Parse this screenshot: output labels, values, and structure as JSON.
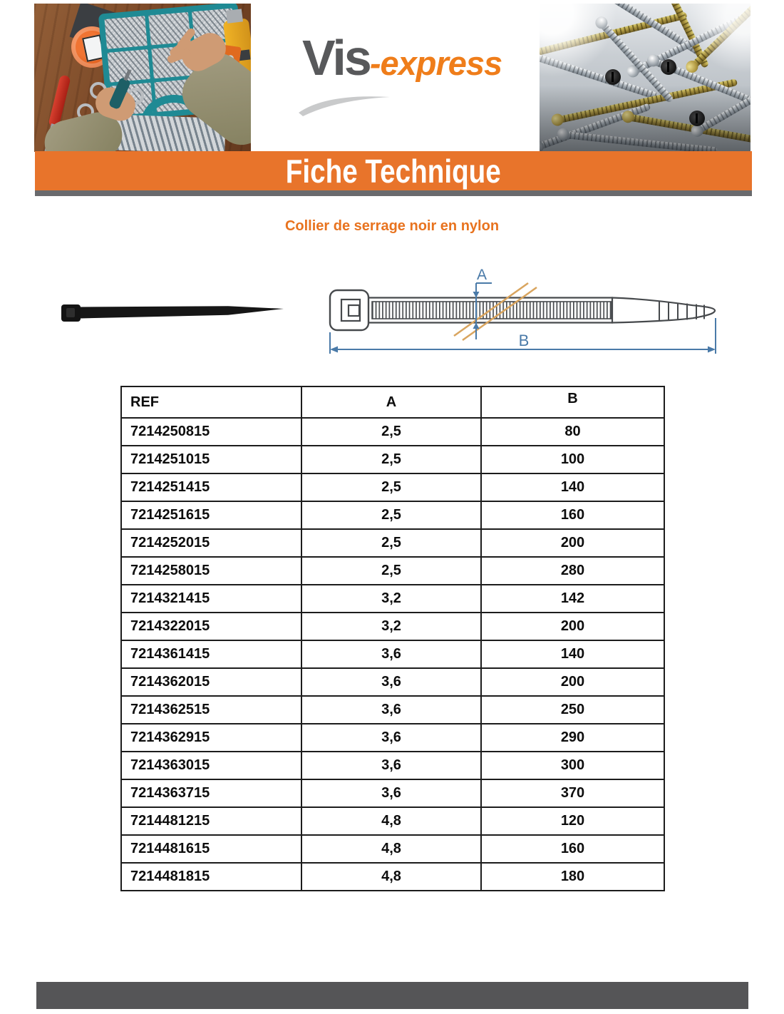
{
  "header": {
    "logo_primary": "Vis",
    "logo_secondary": "-express",
    "banner_title": "Fiche Technique"
  },
  "product": {
    "title": "Collier de serrage noir en nylon"
  },
  "diagram": {
    "dim_a_label": "A",
    "dim_b_label": "B"
  },
  "table": {
    "columns": [
      "REF",
      "A",
      "B"
    ],
    "rows": [
      [
        "7214250815",
        "2,5",
        "80"
      ],
      [
        "7214251015",
        "2,5",
        "100"
      ],
      [
        "7214251415",
        "2,5",
        "140"
      ],
      [
        "7214251615",
        "2,5",
        "160"
      ],
      [
        "7214252015",
        "2,5",
        "200"
      ],
      [
        "7214258015",
        "2,5",
        "280"
      ],
      [
        "7214321415",
        "3,2",
        "142"
      ],
      [
        "7214322015",
        "3,2",
        "200"
      ],
      [
        "7214361415",
        "3,6",
        "140"
      ],
      [
        "7214362015",
        "3,6",
        "200"
      ],
      [
        "7214362515",
        "3,6",
        "250"
      ],
      [
        "7214362915",
        "3,6",
        "290"
      ],
      [
        "7214363015",
        "3,6",
        "300"
      ],
      [
        "7214363715",
        "3,6",
        "370"
      ],
      [
        "7214481215",
        "4,8",
        "120"
      ],
      [
        "7214481615",
        "4,8",
        "160"
      ],
      [
        "7214481815",
        "4,8",
        "180"
      ]
    ]
  },
  "colors": {
    "accent_orange": "#e8742b",
    "logo_orange": "#ef7d1a",
    "logo_gray": "#58595b",
    "dimension_blue": "#4a7aa8",
    "break_line_tan": "#d9a55f",
    "footer_gray": "#555557"
  }
}
